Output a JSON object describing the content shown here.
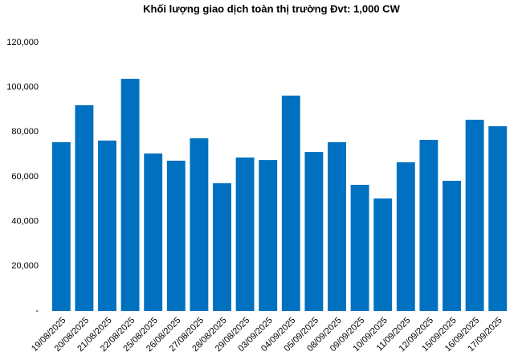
{
  "chart_data": {
    "type": "bar",
    "title": "Khối lượng giao dịch toàn thị trường Đvt: 1,000 CW",
    "categories": [
      "19/08/2025",
      "20/08/2025",
      "21/08/2025",
      "22/08/2025",
      "25/08/2025",
      "26/08/2025",
      "27/08/2025",
      "28/08/2025",
      "29/08/2025",
      "03/09/2025",
      "04/09/2025",
      "05/09/2025",
      "08/09/2025",
      "09/09/2025",
      "10/09/2025",
      "11/09/2025",
      "12/09/2025",
      "15/09/2025",
      "16/09/2025",
      "17/09/2025"
    ],
    "values": [
      75500,
      92000,
      76200,
      103800,
      70400,
      67200,
      77200,
      57100,
      68600,
      67500,
      96300,
      71100,
      75500,
      56400,
      50300,
      66500,
      76500,
      58200,
      85500,
      82600
    ],
    "color": "#0070c0",
    "ylim": [
      0,
      120000
    ],
    "yticks": [
      {
        "value": 0,
        "label": "-"
      },
      {
        "value": 20000,
        "label": "20,000"
      },
      {
        "value": 40000,
        "label": "40,000"
      },
      {
        "value": 60000,
        "label": "60,000"
      },
      {
        "value": 80000,
        "label": "80,000"
      },
      {
        "value": 100000,
        "label": "100,000"
      },
      {
        "value": 120000,
        "label": "120,000"
      }
    ],
    "grid": false
  }
}
